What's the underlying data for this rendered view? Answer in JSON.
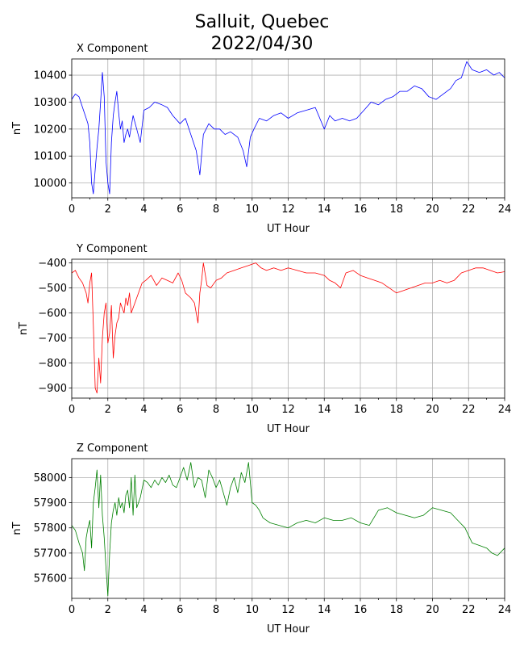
{
  "figure": {
    "title_line1": "Salluit, Quebec",
    "title_line2": "2022/04/30"
  },
  "chart_data": [
    {
      "type": "line",
      "title": "X Component",
      "xlabel": "UT Hour",
      "ylabel": "nT",
      "xlim": [
        0,
        24
      ],
      "ylim": [
        9945,
        10460
      ],
      "xticks": [
        0,
        2,
        4,
        6,
        8,
        10,
        12,
        14,
        16,
        18,
        20,
        22,
        24
      ],
      "yticks": [
        10000,
        10100,
        10200,
        10300,
        10400
      ],
      "grid": true,
      "color": "#0000ff",
      "series": [
        {
          "x": [
            0,
            0.2,
            0.4,
            0.6,
            0.8,
            0.9,
            1.0,
            1.1,
            1.2,
            1.3,
            1.4,
            1.5,
            1.6,
            1.7,
            1.8,
            1.9,
            2.0,
            2.1,
            2.2,
            2.3,
            2.4,
            2.5,
            2.6,
            2.7,
            2.8,
            2.9,
            3.0,
            3.1,
            3.2,
            3.4,
            3.6,
            3.8,
            4.0,
            4.3,
            4.6,
            5.0,
            5.3,
            5.6,
            6.0,
            6.3,
            6.6,
            6.9,
            7.1,
            7.3,
            7.6,
            7.9,
            8.2,
            8.5,
            8.8,
            9.2,
            9.5,
            9.7,
            9.9,
            10.1,
            10.4,
            10.8,
            11.2,
            11.6,
            12.0,
            12.5,
            13.0,
            13.5,
            14.0,
            14.3,
            14.6,
            15.0,
            15.4,
            15.8,
            16.2,
            16.6,
            17.0,
            17.4,
            17.8,
            18.2,
            18.6,
            19.0,
            19.4,
            19.8,
            20.2,
            20.6,
            21.0,
            21.3,
            21.6,
            21.9,
            22.2,
            22.6,
            23.0,
            23.4,
            23.7,
            24.0
          ],
          "values": [
            10310,
            10330,
            10320,
            10280,
            10240,
            10220,
            10150,
            10000,
            9960,
            10050,
            10130,
            10200,
            10300,
            10410,
            10320,
            10080,
            10000,
            9960,
            10150,
            10250,
            10300,
            10340,
            10260,
            10200,
            10230,
            10150,
            10180,
            10200,
            10170,
            10250,
            10200,
            10150,
            10270,
            10280,
            10300,
            10290,
            10280,
            10250,
            10220,
            10240,
            10180,
            10120,
            10030,
            10180,
            10220,
            10200,
            10200,
            10180,
            10190,
            10170,
            10120,
            10060,
            10170,
            10200,
            10240,
            10230,
            10250,
            10260,
            10240,
            10260,
            10270,
            10280,
            10200,
            10250,
            10230,
            10240,
            10230,
            10240,
            10270,
            10300,
            10290,
            10310,
            10320,
            10340,
            10340,
            10360,
            10350,
            10320,
            10310,
            10330,
            10350,
            10380,
            10390,
            10450,
            10420,
            10410,
            10420,
            10400,
            10410,
            10390
          ]
        }
      ]
    },
    {
      "type": "line",
      "title": "Y Component",
      "xlabel": "UT Hour",
      "ylabel": "nT",
      "xlim": [
        0,
        24
      ],
      "ylim": [
        -940,
        -385
      ],
      "xticks": [
        0,
        2,
        4,
        6,
        8,
        10,
        12,
        14,
        16,
        18,
        20,
        22,
        24
      ],
      "yticks": [
        -900,
        -800,
        -700,
        -600,
        -500,
        -400
      ],
      "grid": true,
      "color": "#ff0000",
      "series": [
        {
          "x": [
            0,
            0.2,
            0.4,
            0.6,
            0.8,
            0.9,
            1.0,
            1.1,
            1.2,
            1.3,
            1.4,
            1.5,
            1.6,
            1.7,
            1.8,
            1.9,
            2.0,
            2.1,
            2.2,
            2.3,
            2.4,
            2.5,
            2.6,
            2.7,
            2.8,
            2.9,
            3.0,
            3.1,
            3.2,
            3.3,
            3.5,
            3.7,
            3.9,
            4.1,
            4.4,
            4.7,
            5.0,
            5.3,
            5.6,
            5.9,
            6.1,
            6.3,
            6.6,
            6.8,
            7.0,
            7.1,
            7.2,
            7.3,
            7.5,
            7.7,
            8.0,
            8.3,
            8.6,
            9.0,
            9.4,
            9.8,
            10.2,
            10.5,
            10.8,
            11.2,
            11.6,
            12.0,
            12.5,
            13.0,
            13.5,
            14.0,
            14.3,
            14.6,
            14.9,
            15.2,
            15.6,
            16.0,
            16.4,
            16.8,
            17.2,
            17.6,
            18.0,
            18.4,
            18.8,
            19.2,
            19.6,
            20.0,
            20.4,
            20.8,
            21.2,
            21.6,
            22.0,
            22.4,
            22.8,
            23.2,
            23.6,
            24.0
          ],
          "values": [
            -440,
            -430,
            -460,
            -480,
            -520,
            -560,
            -480,
            -440,
            -650,
            -900,
            -920,
            -780,
            -880,
            -700,
            -600,
            -560,
            -720,
            -680,
            -570,
            -780,
            -690,
            -640,
            -620,
            -560,
            -580,
            -600,
            -540,
            -570,
            -520,
            -600,
            -560,
            -520,
            -480,
            -470,
            -450,
            -490,
            -460,
            -470,
            -480,
            -440,
            -470,
            -520,
            -540,
            -560,
            -640,
            -520,
            -470,
            -400,
            -490,
            -500,
            -470,
            -460,
            -440,
            -430,
            -420,
            -410,
            -400,
            -420,
            -430,
            -420,
            -430,
            -420,
            -430,
            -440,
            -440,
            -450,
            -470,
            -480,
            -500,
            -440,
            -430,
            -450,
            -460,
            -470,
            -480,
            -500,
            -520,
            -510,
            -500,
            -490,
            -480,
            -480,
            -470,
            -480,
            -470,
            -440,
            -430,
            -420,
            -420,
            -430,
            -440,
            -435
          ]
        }
      ]
    },
    {
      "type": "line",
      "title": "Z Component",
      "xlabel": "UT Hour",
      "ylabel": "nT",
      "xlim": [
        0,
        24
      ],
      "ylim": [
        57520,
        58075
      ],
      "xticks": [
        0,
        2,
        4,
        6,
        8,
        10,
        12,
        14,
        16,
        18,
        20,
        22,
        24
      ],
      "yticks": [
        57600,
        57700,
        57800,
        57900,
        58000
      ],
      "grid": true,
      "color": "#008000",
      "series": [
        {
          "x": [
            0,
            0.2,
            0.4,
            0.6,
            0.7,
            0.8,
            0.9,
            1.0,
            1.1,
            1.2,
            1.3,
            1.4,
            1.5,
            1.6,
            1.7,
            1.8,
            1.9,
            2.0,
            2.1,
            2.2,
            2.3,
            2.4,
            2.5,
            2.6,
            2.7,
            2.8,
            2.9,
            3.0,
            3.1,
            3.2,
            3.3,
            3.4,
            3.5,
            3.6,
            3.8,
            4.0,
            4.2,
            4.4,
            4.6,
            4.8,
            5.0,
            5.2,
            5.4,
            5.6,
            5.8,
            6.0,
            6.2,
            6.4,
            6.6,
            6.8,
            7.0,
            7.2,
            7.4,
            7.6,
            7.8,
            8.0,
            8.2,
            8.4,
            8.6,
            8.8,
            9.0,
            9.2,
            9.4,
            9.6,
            9.8,
            10.0,
            10.2,
            10.4,
            10.6,
            10.8,
            11.0,
            11.5,
            12.0,
            12.5,
            13.0,
            13.5,
            14.0,
            14.5,
            15.0,
            15.5,
            16.0,
            16.5,
            17.0,
            17.5,
            18.0,
            18.5,
            19.0,
            19.5,
            20.0,
            20.5,
            21.0,
            21.4,
            21.8,
            22.2,
            22.6,
            23.0,
            23.3,
            23.6,
            24.0
          ],
          "values": [
            57810,
            57790,
            57740,
            57700,
            57630,
            57760,
            57800,
            57830,
            57720,
            57900,
            57960,
            58030,
            57880,
            58010,
            57850,
            57760,
            57640,
            57530,
            57700,
            57820,
            57870,
            57900,
            57850,
            57920,
            57880,
            57900,
            57860,
            57930,
            57950,
            57880,
            58000,
            57850,
            58010,
            57880,
            57920,
            57990,
            57980,
            57960,
            57990,
            57970,
            58000,
            57980,
            58010,
            57970,
            57960,
            58000,
            58040,
            57990,
            58060,
            57960,
            58000,
            57990,
            57920,
            58030,
            58000,
            57960,
            57990,
            57940,
            57890,
            57960,
            58000,
            57940,
            58020,
            57980,
            58060,
            57900,
            57890,
            57870,
            57840,
            57830,
            57820,
            57810,
            57800,
            57820,
            57830,
            57820,
            57840,
            57830,
            57830,
            57840,
            57820,
            57810,
            57870,
            57880,
            57860,
            57850,
            57840,
            57850,
            57880,
            57870,
            57860,
            57830,
            57800,
            57740,
            57730,
            57720,
            57700,
            57690,
            57720
          ]
        }
      ]
    }
  ]
}
